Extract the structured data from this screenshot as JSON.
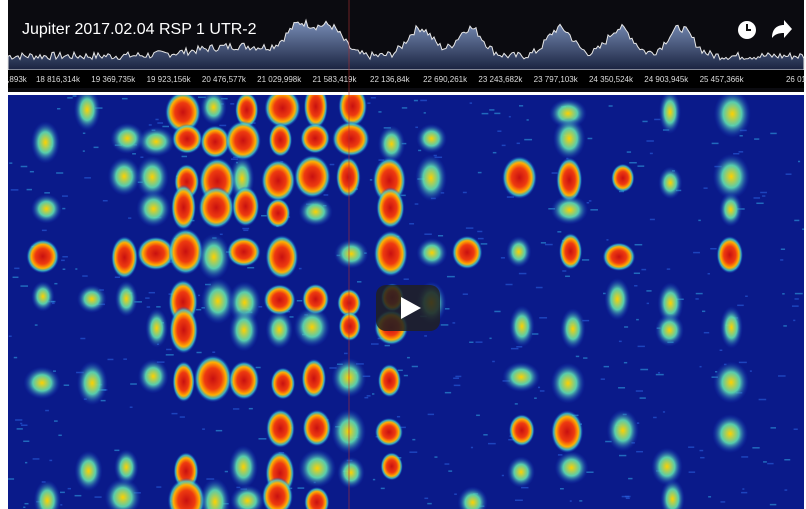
{
  "video": {
    "title": "Jupiter 2017.02.04 RSP 1 UTR-2",
    "frequency_labels": [
      ",893k",
      "18 816,314k",
      "19 369,735k",
      "19 923,156k",
      "20 476,577k",
      "21 029,998k",
      "21 583,419k",
      "22 136,84k",
      "22 690,261k",
      "23 243,682k",
      "23 797,103k",
      "24 350,524k",
      "24 903,945k",
      "25 457,366k",
      "26 01"
    ]
  }
}
